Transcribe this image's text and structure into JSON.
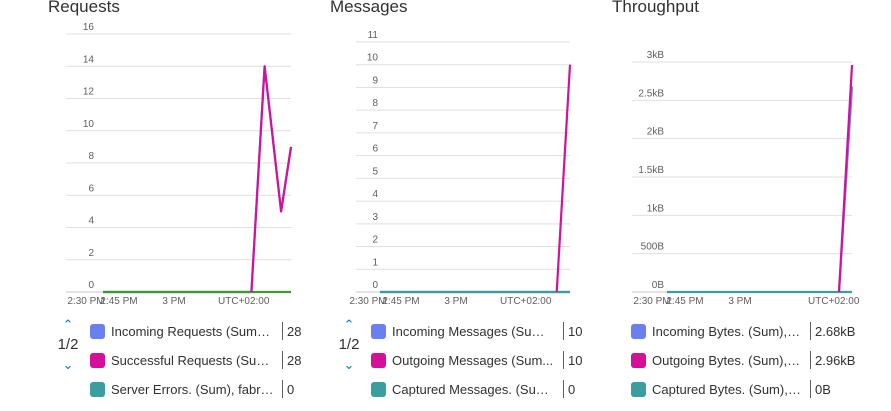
{
  "panels": [
    {
      "title": "Requests",
      "pager": {
        "page": "1/2"
      },
      "chart_data": {
        "type": "line",
        "title": "Requests",
        "yticks": [
          "16",
          "14",
          "12",
          "10",
          "8",
          "6",
          "4",
          "2",
          "0"
        ],
        "ylim": [
          0,
          16
        ],
        "xticks": [
          "2:30 PM",
          "2:45 PM",
          "3 PM"
        ],
        "timezone": "UTC+02:00",
        "grid": true,
        "series": [
          {
            "name": "Incoming Requests (Sum),...",
            "color": "#6b80f0",
            "points": [
              [
                "2:27 PM",
                0
              ],
              [
                "3:12 PM",
                0
              ],
              [
                "3:16 PM",
                14
              ],
              [
                "3:21 PM",
                5
              ],
              [
                "3:24 PM",
                9
              ]
            ]
          },
          {
            "name": "Successful Requests (Sum)...",
            "color": "#d4109a",
            "points": [
              [
                "3:12 PM",
                0
              ],
              [
                "3:16 PM",
                14
              ],
              [
                "3:21 PM",
                5
              ],
              [
                "3:24 PM",
                9
              ]
            ]
          },
          {
            "name": "Server Errors. (Sum), fabric...",
            "color": "#3d9a2e",
            "points": [
              [
                "2:27 PM",
                0
              ],
              [
                "3:24 PM",
                0
              ]
            ]
          }
        ]
      },
      "legend": [
        {
          "label": "Incoming Requests (Sum),...",
          "value": "28",
          "color": "#6b80f0"
        },
        {
          "label": "Successful Requests (Sum)...",
          "value": "28",
          "color": "#d4109a"
        },
        {
          "label": "Server Errors. (Sum), fabric...",
          "value": "0",
          "color": "#3a9e9e"
        }
      ]
    },
    {
      "title": "Messages",
      "pager": {
        "page": "1/2"
      },
      "chart_data": {
        "type": "line",
        "title": "Messages",
        "yticks": [
          "11",
          "10",
          "9",
          "8",
          "7",
          "6",
          "5",
          "4",
          "3",
          "2",
          "1",
          "0"
        ],
        "ylim": [
          0,
          11
        ],
        "xticks": [
          "2:30 PM",
          "2:45 PM",
          "3 PM"
        ],
        "timezone": "UTC+02:00",
        "grid": true,
        "series": [
          {
            "name": "Incoming Messages (Sum)...",
            "color": "#8b6fd0",
            "points": [
              [
                "2:27 PM",
                0
              ],
              [
                "3:24 PM",
                0
              ]
            ]
          },
          {
            "name": "Outgoing Messages (Sum...",
            "color": "#d4109a",
            "points": [
              [
                "3:20 PM",
                0
              ],
              [
                "3:24 PM",
                10
              ]
            ]
          },
          {
            "name": "Captured Messages. (Sum...",
            "color": "#3a9e9e",
            "points": [
              [
                "2:27 PM",
                0
              ],
              [
                "3:24 PM",
                0
              ]
            ]
          }
        ]
      },
      "legend": [
        {
          "label": "Incoming Messages (Sum)...",
          "value": "10",
          "color": "#6b80f0"
        },
        {
          "label": "Outgoing Messages (Sum...",
          "value": "10",
          "color": "#d4109a"
        },
        {
          "label": "Captured Messages. (Sum...",
          "value": "0",
          "color": "#3a9e9e"
        }
      ]
    },
    {
      "title": "Throughput",
      "chart_data": {
        "type": "line",
        "title": "Throughput",
        "yticks": [
          "3kB",
          "2.5kB",
          "2kB",
          "1.5kB",
          "1kB",
          "500B",
          "0B"
        ],
        "ylim": [
          0,
          3
        ],
        "xticks": [
          "2:30 PM",
          "2:45 PM",
          "3 PM"
        ],
        "timezone": "UTC+02:00",
        "grid": true,
        "series": [
          {
            "name": "Incoming Bytes. (Sum), f...",
            "color": "#6b80f0",
            "points": [
              [
                "3:20 PM",
                0
              ],
              [
                "3:24 PM",
                2.68
              ]
            ]
          },
          {
            "name": "Outgoing Bytes. (Sum), f...",
            "color": "#d4109a",
            "points": [
              [
                "3:20 PM",
                0
              ],
              [
                "3:24 PM",
                2.96
              ]
            ]
          },
          {
            "name": "Captured Bytes. (Sum), fa...",
            "color": "#3a9e9e",
            "points": [
              [
                "2:27 PM",
                0
              ],
              [
                "3:24 PM",
                0
              ]
            ]
          }
        ]
      },
      "legend": [
        {
          "label": "Incoming Bytes. (Sum), f...",
          "value": "2.68kB",
          "color": "#6b80f0"
        },
        {
          "label": "Outgoing Bytes. (Sum), f...",
          "value": "2.96kB",
          "color": "#d4109a"
        },
        {
          "label": "Captured Bytes. (Sum), fa...",
          "value": "0B",
          "color": "#3a9e9e"
        }
      ]
    }
  ]
}
